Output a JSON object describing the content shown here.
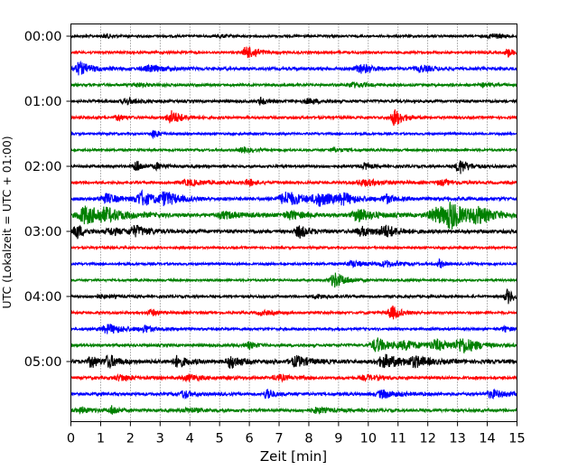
{
  "chart_data": {
    "type": "line",
    "title": "",
    "xlabel": "Zeit  [min]",
    "ylabel": "UTC (Lokalzeit = UTC + 01:00)",
    "xlim": [
      0,
      15
    ],
    "x_ticks": [
      "0",
      "1",
      "2",
      "3",
      "4",
      "5",
      "6",
      "7",
      "8",
      "9",
      "10",
      "11",
      "12",
      "13",
      "14",
      "15"
    ],
    "y_ticks": [
      "00:00",
      "01:00",
      "02:00",
      "03:00",
      "04:00",
      "05:00"
    ],
    "grid": "vertical dotted at each minute",
    "trace_interval_min": 15,
    "trace_colors": [
      "#000000",
      "#ff0000",
      "#0000ff",
      "#008000"
    ],
    "traces": [
      {
        "start": "00:00",
        "color": "#000000",
        "noise": 0.25,
        "events": [
          [
            1.2,
            0.7,
            0.15
          ],
          [
            5.0,
            0.5,
            0.15
          ],
          [
            14.2,
            0.8,
            0.25
          ]
        ]
      },
      {
        "start": "00:15",
        "color": "#ff0000",
        "noise": 0.3,
        "events": [
          [
            5.9,
            2.6,
            0.12
          ],
          [
            6.2,
            1.0,
            0.2
          ],
          [
            14.7,
            1.4,
            0.15
          ]
        ]
      },
      {
        "start": "00:30",
        "color": "#0000ff",
        "noise": 0.5,
        "events": [
          [
            0.3,
            2.0,
            0.3
          ],
          [
            2.7,
            0.9,
            0.4
          ],
          [
            9.8,
            1.4,
            0.3
          ],
          [
            11.8,
            0.9,
            0.3
          ]
        ]
      },
      {
        "start": "00:45",
        "color": "#008000",
        "noise": 0.35,
        "events": [
          [
            2.2,
            0.6,
            0.3
          ],
          [
            9.5,
            0.8,
            0.3
          ],
          [
            13.9,
            0.6,
            0.2
          ]
        ]
      },
      {
        "start": "01:00",
        "color": "#000000",
        "noise": 0.4,
        "events": [
          [
            1.9,
            1.0,
            0.25
          ],
          [
            6.4,
            1.4,
            0.12
          ],
          [
            8.0,
            0.7,
            0.3
          ]
        ]
      },
      {
        "start": "01:15",
        "color": "#ff0000",
        "noise": 0.35,
        "events": [
          [
            1.6,
            1.2,
            0.12
          ],
          [
            3.4,
            2.2,
            0.25
          ],
          [
            10.9,
            2.8,
            0.2
          ]
        ]
      },
      {
        "start": "01:30",
        "color": "#0000ff",
        "noise": 0.2,
        "events": [
          [
            2.8,
            1.5,
            0.12
          ]
        ]
      },
      {
        "start": "01:45",
        "color": "#008000",
        "noise": 0.25,
        "events": [
          [
            5.8,
            0.9,
            0.2
          ],
          [
            8.9,
            0.5,
            0.3
          ]
        ]
      },
      {
        "start": "02:00",
        "color": "#000000",
        "noise": 0.35,
        "events": [
          [
            2.2,
            2.2,
            0.12
          ],
          [
            2.9,
            1.0,
            0.2
          ],
          [
            9.9,
            1.0,
            0.15
          ],
          [
            13.1,
            2.4,
            0.2
          ]
        ]
      },
      {
        "start": "02:15",
        "color": "#ff0000",
        "noise": 0.4,
        "events": [
          [
            4.0,
            0.9,
            0.4
          ],
          [
            6.0,
            1.0,
            0.2
          ],
          [
            9.9,
            1.0,
            0.4
          ],
          [
            12.5,
            0.8,
            0.3
          ]
        ]
      },
      {
        "start": "02:30",
        "color": "#0000ff",
        "noise": 0.7,
        "events": [
          [
            1.2,
            1.5,
            0.3
          ],
          [
            2.4,
            2.2,
            0.3
          ],
          [
            3.2,
            2.0,
            0.3
          ],
          [
            7.3,
            2.3,
            0.4
          ],
          [
            8.4,
            2.0,
            0.3
          ],
          [
            9.2,
            1.5,
            0.3
          ],
          [
            10.6,
            1.6,
            0.15
          ]
        ]
      },
      {
        "start": "02:45",
        "color": "#008000",
        "noise": 0.8,
        "events": [
          [
            0.5,
            3.0,
            0.35
          ],
          [
            1.2,
            1.6,
            0.5
          ],
          [
            5.2,
            1.0,
            0.4
          ],
          [
            7.4,
            1.3,
            0.3
          ],
          [
            9.7,
            2.2,
            0.3
          ],
          [
            12.4,
            2.6,
            0.5
          ],
          [
            12.8,
            3.4,
            0.25
          ],
          [
            13.7,
            2.2,
            0.4
          ]
        ]
      },
      {
        "start": "03:00",
        "color": "#000000",
        "noise": 0.7,
        "events": [
          [
            0.2,
            2.6,
            0.15
          ],
          [
            1.4,
            1.1,
            0.3
          ],
          [
            2.2,
            1.6,
            0.3
          ],
          [
            7.7,
            2.0,
            0.2
          ],
          [
            9.8,
            1.4,
            0.3
          ],
          [
            10.6,
            1.8,
            0.3
          ]
        ]
      },
      {
        "start": "03:15",
        "color": "#ff0000",
        "noise": 0.2,
        "events": []
      },
      {
        "start": "03:30",
        "color": "#0000ff",
        "noise": 0.25,
        "events": [
          [
            9.5,
            1.0,
            0.3
          ],
          [
            10.6,
            0.9,
            0.3
          ],
          [
            12.4,
            1.4,
            0.1
          ]
        ]
      },
      {
        "start": "03:45",
        "color": "#008000",
        "noise": 0.2,
        "events": [
          [
            8.9,
            2.6,
            0.25
          ]
        ]
      },
      {
        "start": "04:00",
        "color": "#000000",
        "noise": 0.3,
        "events": [
          [
            1.0,
            0.5,
            0.3
          ],
          [
            8.3,
            0.6,
            0.3
          ],
          [
            14.7,
            2.4,
            0.15
          ]
        ]
      },
      {
        "start": "04:15",
        "color": "#ff0000",
        "noise": 0.3,
        "events": [
          [
            2.7,
            1.1,
            0.15
          ],
          [
            6.5,
            0.6,
            0.3
          ],
          [
            10.8,
            2.3,
            0.2
          ]
        ]
      },
      {
        "start": "04:30",
        "color": "#0000ff",
        "noise": 0.3,
        "events": [
          [
            1.3,
            1.5,
            0.4
          ],
          [
            2.5,
            1.2,
            0.15
          ],
          [
            14.6,
            0.9,
            0.15
          ]
        ]
      },
      {
        "start": "04:45",
        "color": "#008000",
        "noise": 0.45,
        "events": [
          [
            6.0,
            1.0,
            0.2
          ],
          [
            10.3,
            2.5,
            0.25
          ],
          [
            11.3,
            1.3,
            0.4
          ],
          [
            12.3,
            1.6,
            0.3
          ],
          [
            13.2,
            2.4,
            0.35
          ]
        ]
      },
      {
        "start": "05:00",
        "color": "#000000",
        "noise": 0.9,
        "events": [
          [
            0.7,
            2.0,
            0.15
          ],
          [
            1.3,
            2.0,
            0.2
          ],
          [
            3.6,
            1.8,
            0.2
          ],
          [
            5.4,
            2.2,
            0.2
          ],
          [
            7.6,
            1.6,
            0.3
          ],
          [
            10.6,
            2.0,
            0.4
          ],
          [
            11.6,
            1.4,
            0.3
          ]
        ]
      },
      {
        "start": "05:15",
        "color": "#ff0000",
        "noise": 0.45,
        "events": [
          [
            1.7,
            1.0,
            0.3
          ],
          [
            4.0,
            1.0,
            0.3
          ],
          [
            7.0,
            0.9,
            0.3
          ],
          [
            10.0,
            0.8,
            0.3
          ]
        ]
      },
      {
        "start": "05:30",
        "color": "#0000ff",
        "noise": 0.55,
        "events": [
          [
            3.8,
            1.4,
            0.15
          ],
          [
            6.6,
            2.2,
            0.12
          ],
          [
            10.5,
            1.3,
            0.3
          ],
          [
            14.2,
            1.2,
            0.3
          ]
        ]
      },
      {
        "start": "05:45",
        "color": "#008000",
        "noise": 0.5,
        "events": [
          [
            0.4,
            0.7,
            0.3
          ],
          [
            1.4,
            1.4,
            0.15
          ],
          [
            4.0,
            0.7,
            0.3
          ],
          [
            8.3,
            0.9,
            0.3
          ]
        ]
      }
    ]
  }
}
